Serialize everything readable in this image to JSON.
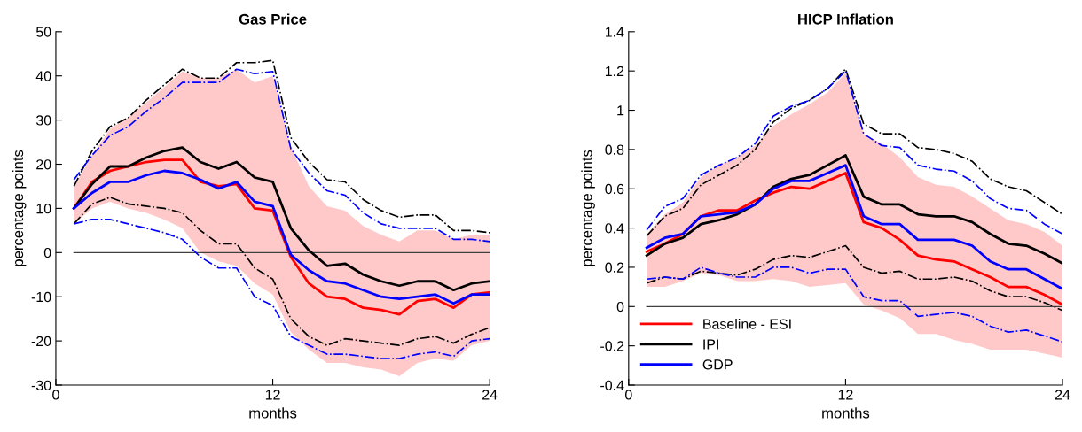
{
  "chart_data": [
    {
      "type": "line",
      "title": "Gas Price",
      "xlabel": "months",
      "ylabel": "percentage points",
      "x": [
        1,
        2,
        3,
        4,
        5,
        6,
        7,
        8,
        9,
        10,
        11,
        12,
        13,
        14,
        15,
        16,
        17,
        18,
        19,
        20,
        21,
        22,
        23,
        24
      ],
      "xlim": [
        0,
        24
      ],
      "xticks": [
        0,
        12,
        24
      ],
      "ylim": [
        -30,
        50
      ],
      "yticks": [
        -30,
        -20,
        -10,
        0,
        10,
        20,
        30,
        40,
        50
      ],
      "grid": false,
      "legend": false,
      "marker": "none",
      "ref_lines": [
        {
          "axis": "y",
          "value": 0,
          "color": "#404040"
        }
      ],
      "series": [
        {
          "color": "#ff0000",
          "values": [
            10,
            16,
            18.5,
            19.5,
            20.5,
            21,
            21,
            16,
            15,
            15.5,
            10,
            9.5,
            -1,
            -7,
            -10,
            -10.5,
            -12.5,
            -13,
            -14,
            -11,
            -10.5,
            -12.5,
            -9.5,
            -9
          ],
          "lower": [
            6.5,
            10,
            11.5,
            10,
            9,
            7.5,
            5.5,
            0,
            -2,
            -3,
            -7,
            -9.5,
            -18,
            -22,
            -25,
            -25,
            -26,
            -26.5,
            -28,
            -25,
            -24,
            -24.5,
            -21,
            -20
          ],
          "upper": [
            15,
            22,
            28,
            30.5,
            34,
            37.5,
            41,
            39.5,
            39.5,
            41.5,
            38.5,
            40,
            24,
            15,
            10.5,
            9.5,
            6,
            4,
            2.5,
            5,
            5,
            3,
            4,
            4
          ]
        },
        {
          "color": "#000000",
          "values": [
            10,
            15.5,
            19.5,
            19.5,
            21.5,
            23,
            23.8,
            20.5,
            19,
            20.5,
            17,
            16,
            5.5,
            0.5,
            -3,
            -2.5,
            -5,
            -6.5,
            -7.5,
            -6.5,
            -6.5,
            -8.5,
            -7,
            -6.5
          ]
        },
        {
          "color": "#0000ff",
          "values": [
            10,
            13.5,
            16,
            16,
            17.5,
            18.5,
            18,
            16.5,
            14.5,
            16,
            11.5,
            10.5,
            -0.5,
            -4,
            -6.5,
            -7,
            -8.5,
            -10,
            -10.5,
            -10,
            -9.5,
            -11.5,
            -9.5,
            -9.5
          ]
        },
        {
          "color": "#000000",
          "line_style": "dashdot",
          "values": [
            15,
            23,
            28.5,
            30.5,
            34.5,
            38,
            41.5,
            39.5,
            39.5,
            43,
            43,
            43.5,
            26,
            20.5,
            16.5,
            16,
            12,
            9.5,
            8,
            8.5,
            8.5,
            5,
            5,
            4.5
          ]
        },
        {
          "color": "#000000",
          "line_style": "dashdot",
          "values": [
            6.5,
            11,
            12.5,
            11,
            10.5,
            10,
            9,
            5,
            2,
            2,
            -3.5,
            -6,
            -15,
            -19,
            -21,
            -19.5,
            -20,
            -20.5,
            -21,
            -19.5,
            -19,
            -20.5,
            -18.5,
            -17
          ]
        },
        {
          "color": "#0000ff",
          "line_style": "dashdot",
          "values": [
            16.5,
            22,
            26.5,
            28.5,
            32,
            35,
            38.5,
            38.5,
            38.5,
            41.5,
            40.5,
            41,
            23.5,
            18,
            14,
            13,
            9,
            6.5,
            5.5,
            5.5,
            5.5,
            3,
            3,
            2.5
          ]
        },
        {
          "color": "#0000ff",
          "line_style": "dashdot",
          "values": [
            6.5,
            7.5,
            7.5,
            6.5,
            5.5,
            4.5,
            3,
            -1,
            -3.5,
            -3.5,
            -10,
            -12,
            -19,
            -21,
            -23,
            -23,
            -23.5,
            -24,
            -24,
            -23,
            -22.5,
            -23.5,
            -20,
            -19.5
          ]
        }
      ]
    },
    {
      "type": "line",
      "title": "HICP Inflation",
      "xlabel": "months",
      "ylabel": "percentage points",
      "x": [
        1,
        2,
        3,
        4,
        5,
        6,
        7,
        8,
        9,
        10,
        11,
        12,
        13,
        14,
        15,
        16,
        17,
        18,
        19,
        20,
        21,
        22,
        23,
        24
      ],
      "xlim": [
        0,
        24
      ],
      "xticks": [
        0,
        12,
        24
      ],
      "ylim": [
        -0.4,
        1.4
      ],
      "yticks": [
        -0.4,
        -0.2,
        0,
        0.2,
        0.4,
        0.6,
        0.8,
        1,
        1.2,
        1.4
      ],
      "grid": false,
      "legend": "bottom left",
      "marker": "none",
      "ref_lines": [
        {
          "axis": "y",
          "value": 0,
          "color": "#404040"
        }
      ],
      "series": [
        {
          "name": "Baseline - ESI",
          "color": "#ff0000",
          "values": [
            0.28,
            0.32,
            0.37,
            0.46,
            0.49,
            0.49,
            0.54,
            0.58,
            0.61,
            0.6,
            0.64,
            0.68,
            0.43,
            0.4,
            0.34,
            0.26,
            0.24,
            0.23,
            0.19,
            0.15,
            0.1,
            0.1,
            0.06,
            0.01
          ],
          "lower": [
            0.1,
            0.1,
            0.13,
            0.17,
            0.16,
            0.13,
            0.13,
            0.14,
            0.13,
            0.1,
            0.11,
            0.12,
            0.01,
            -0.02,
            -0.06,
            -0.14,
            -0.14,
            -0.17,
            -0.19,
            -0.22,
            -0.22,
            -0.22,
            -0.24,
            -0.26
          ],
          "upper": [
            0.37,
            0.47,
            0.53,
            0.66,
            0.72,
            0.76,
            0.82,
            0.92,
            0.98,
            1.03,
            1.09,
            1.19,
            0.88,
            0.83,
            0.76,
            0.66,
            0.62,
            0.61,
            0.56,
            0.5,
            0.44,
            0.42,
            0.38,
            0.31
          ]
        },
        {
          "name": "IPI",
          "color": "#000000",
          "values": [
            0.26,
            0.32,
            0.35,
            0.42,
            0.44,
            0.47,
            0.52,
            0.61,
            0.65,
            0.67,
            0.72,
            0.77,
            0.56,
            0.52,
            0.52,
            0.47,
            0.46,
            0.46,
            0.43,
            0.37,
            0.32,
            0.31,
            0.27,
            0.22
          ]
        },
        {
          "name": "GDP",
          "color": "#0000ff",
          "values": [
            0.3,
            0.35,
            0.37,
            0.46,
            0.47,
            0.48,
            0.52,
            0.6,
            0.64,
            0.64,
            0.68,
            0.72,
            0.46,
            0.42,
            0.42,
            0.34,
            0.34,
            0.34,
            0.31,
            0.23,
            0.19,
            0.19,
            0.14,
            0.09
          ]
        },
        {
          "color": "#000000",
          "line_style": "dashdot",
          "values": [
            0.36,
            0.46,
            0.5,
            0.62,
            0.67,
            0.72,
            0.8,
            0.94,
            1.01,
            1.05,
            1.11,
            1.21,
            0.93,
            0.88,
            0.88,
            0.81,
            0.8,
            0.78,
            0.74,
            0.65,
            0.61,
            0.59,
            0.53,
            0.47
          ]
        },
        {
          "color": "#000000",
          "line_style": "dashdot",
          "values": [
            0.12,
            0.15,
            0.14,
            0.18,
            0.17,
            0.16,
            0.19,
            0.24,
            0.26,
            0.25,
            0.28,
            0.31,
            0.2,
            0.17,
            0.18,
            0.14,
            0.14,
            0.15,
            0.13,
            0.08,
            0.05,
            0.05,
            0.02,
            -0.02
          ]
        },
        {
          "color": "#0000ff",
          "line_style": "dashdot",
          "values": [
            0.39,
            0.51,
            0.55,
            0.67,
            0.72,
            0.76,
            0.83,
            0.97,
            1.02,
            1.05,
            1.11,
            1.2,
            0.88,
            0.82,
            0.81,
            0.72,
            0.7,
            0.69,
            0.64,
            0.55,
            0.5,
            0.49,
            0.42,
            0.37
          ]
        },
        {
          "color": "#0000ff",
          "line_style": "dashdot",
          "values": [
            0.14,
            0.15,
            0.14,
            0.2,
            0.17,
            0.15,
            0.15,
            0.2,
            0.2,
            0.17,
            0.19,
            0.19,
            0.05,
            0.03,
            0.03,
            -0.05,
            -0.04,
            -0.03,
            -0.05,
            -0.1,
            -0.13,
            -0.12,
            -0.15,
            -0.18
          ]
        }
      ]
    }
  ]
}
